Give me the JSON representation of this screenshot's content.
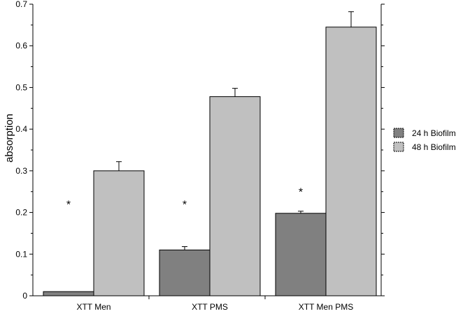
{
  "chart_data": {
    "type": "bar",
    "title": "",
    "xlabel": "",
    "ylabel": "absorption",
    "ylim": [
      0,
      0.7
    ],
    "yticks": [
      "0",
      "0.1",
      "0.2",
      "0.3",
      "0.4",
      "0.5",
      "0.6",
      "0.7"
    ],
    "ytick_values": [
      0,
      0.1,
      0.2,
      0.3,
      0.4,
      0.5,
      0.6,
      0.7
    ],
    "categories": [
      "XTT Men",
      "XTT PMS",
      "XTT Men PMS"
    ],
    "series": [
      {
        "name": "24 h Biofilm",
        "color": "#808080",
        "values": [
          0.01,
          0.11,
          0.198
        ],
        "errors": [
          0,
          0.008,
          0.005
        ]
      },
      {
        "name": "48 h Biofilm",
        "color": "#c0c0c0",
        "values": [
          0.3,
          0.478,
          0.645
        ],
        "errors": [
          0.022,
          0.02,
          0.037
        ]
      }
    ],
    "annotations": [
      {
        "text": "*",
        "category": 0,
        "y": 0.22
      },
      {
        "text": "*",
        "category": 1,
        "y": 0.22
      },
      {
        "text": "*",
        "category": 2,
        "y": 0.25
      }
    ],
    "legend": "right",
    "grid": false
  }
}
